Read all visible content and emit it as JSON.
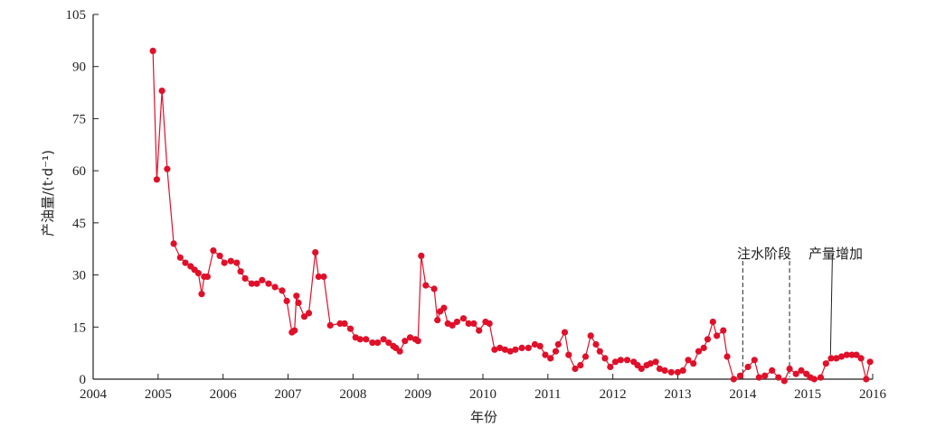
{
  "chart_data": {
    "type": "line",
    "title": "",
    "xlabel": "年份",
    "ylabel": "产油量/(t·d⁻¹)",
    "xlim": [
      2004,
      2016
    ],
    "ylim": [
      0,
      105
    ],
    "xticks": [
      "2004",
      "2005",
      "2006",
      "2007",
      "2008",
      "2009",
      "2010",
      "2011",
      "2012",
      "2013",
      "2014",
      "2015",
      "2016"
    ],
    "yticks": [
      "0",
      "15",
      "30",
      "45",
      "60",
      "75",
      "90",
      "105"
    ],
    "grid": false,
    "line_color": "#e0102a",
    "series": [
      {
        "name": "",
        "x": [
          2004.92,
          2004.98,
          2005.06,
          2005.14,
          2005.24,
          2005.34,
          2005.42,
          2005.5,
          2005.56,
          2005.62,
          2005.67,
          2005.71,
          2005.76,
          2005.85,
          2005.95,
          2006.02,
          2006.12,
          2006.21,
          2006.27,
          2006.34,
          2006.44,
          2006.52,
          2006.6,
          2006.7,
          2006.8,
          2006.91,
          2006.98,
          2007.06,
          2007.1,
          2007.13,
          2007.16,
          2007.25,
          2007.32,
          2007.42,
          2007.47,
          2007.55,
          2007.65,
          2007.8,
          2007.87,
          2007.96,
          2008.04,
          2008.11,
          2008.2,
          2008.3,
          2008.38,
          2008.47,
          2008.55,
          2008.62,
          2008.66,
          2008.72,
          2008.8,
          2008.88,
          2008.96,
          2009.0,
          2009.05,
          2009.12,
          2009.25,
          2009.3,
          2009.34,
          2009.4,
          2009.46,
          2009.53,
          2009.6,
          2009.7,
          2009.78,
          2009.86,
          2009.94,
          2010.04,
          2010.1,
          2010.18,
          2010.26,
          2010.34,
          2010.42,
          2010.5,
          2010.6,
          2010.7,
          2010.8,
          2010.88,
          2010.96,
          2011.04,
          2011.12,
          2011.16,
          2011.26,
          2011.32,
          2011.42,
          2011.5,
          2011.58,
          2011.66,
          2011.74,
          2011.8,
          2011.88,
          2011.96,
          2012.04,
          2012.12,
          2012.22,
          2012.32,
          2012.38,
          2012.44,
          2012.52,
          2012.58,
          2012.66,
          2012.72,
          2012.8,
          2012.9,
          2013.0,
          2013.08,
          2013.16,
          2013.24,
          2013.32,
          2013.4,
          2013.46,
          2013.54,
          2013.6,
          2013.7,
          2013.76,
          2013.86,
          2013.96,
          2014.08,
          2014.18,
          2014.25,
          2014.34,
          2014.45,
          2014.55,
          2014.64,
          2014.72,
          2014.82,
          2014.9,
          2014.98,
          2015.04,
          2015.1,
          2015.2,
          2015.28,
          2015.36,
          2015.44,
          2015.52,
          2015.6,
          2015.68,
          2015.75,
          2015.82,
          2015.9,
          2015.96
        ],
        "y": [
          94.5,
          57.5,
          83,
          60.5,
          39,
          35,
          33.5,
          32.5,
          31.5,
          30.5,
          24.5,
          29.5,
          29.5,
          37,
          35.5,
          33.5,
          34,
          33.5,
          31,
          29,
          27.5,
          27.5,
          28.5,
          27.5,
          26.5,
          25.5,
          22.5,
          13.5,
          14,
          24,
          22,
          18,
          19,
          36.5,
          29.5,
          29.5,
          15.5,
          16,
          16,
          14.5,
          12,
          11.5,
          11.5,
          10.5,
          10.5,
          11.5,
          10.5,
          9.5,
          9,
          8,
          11,
          12,
          11.5,
          11,
          35.5,
          27,
          26,
          17,
          19.5,
          20.5,
          16,
          15.5,
          16.5,
          17.5,
          16,
          16,
          14,
          16.5,
          16,
          8.5,
          9,
          8.5,
          8,
          8.5,
          9,
          9,
          10,
          9.5,
          7,
          6,
          8,
          10,
          13.5,
          7,
          3,
          4,
          6.5,
          12.5,
          10,
          8,
          6,
          3.5,
          5,
          5.5,
          5.5,
          5,
          4,
          3,
          4,
          4.5,
          5,
          3,
          2.5,
          2,
          2,
          2.5,
          5.5,
          4.5,
          8,
          9,
          11.5,
          16.5,
          12.5,
          14,
          6.5,
          0,
          1,
          3.5,
          5.5,
          0.5,
          1,
          2.5,
          0.5,
          -0.5,
          3,
          1.5,
          2.5,
          1.5,
          0.5,
          0,
          0.5,
          4.5,
          6,
          6,
          6.5,
          7,
          7,
          7,
          6,
          0,
          5
        ]
      }
    ],
    "annotations": [
      {
        "label": "注水阶段",
        "x": 2014.0,
        "y_top": 34,
        "style": "dashed"
      },
      {
        "label": "产量增加",
        "x": 2014.72,
        "y_top": 34,
        "style": "dashed"
      },
      {
        "label": "",
        "x_from": 2015.38,
        "y_from": 36,
        "x_to": 2015.35,
        "y_to": 7,
        "style": "solid"
      }
    ]
  }
}
